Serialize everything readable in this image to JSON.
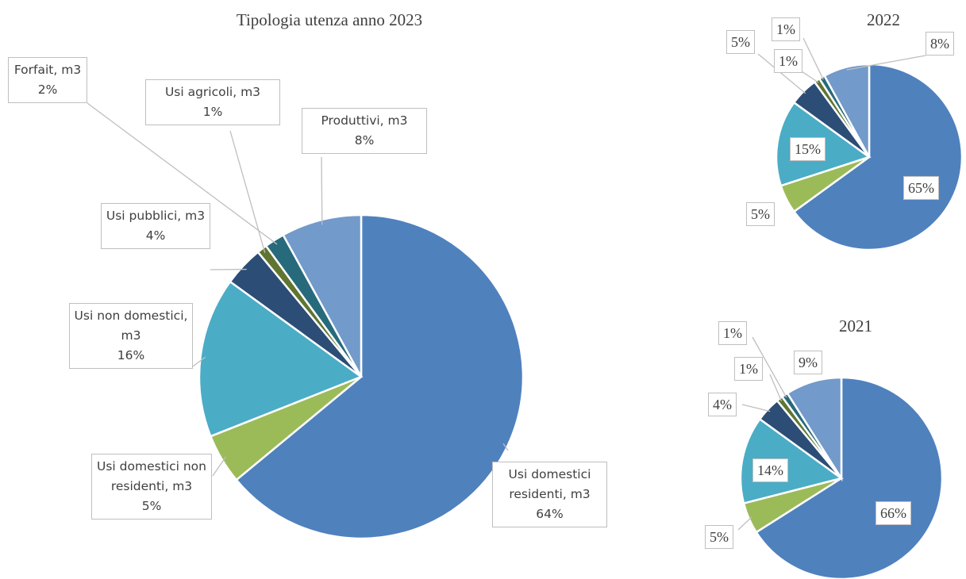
{
  "chart_data": [
    {
      "type": "pie",
      "title": "Tipologia utenza anno 2023",
      "categories": [
        "Usi domestici residenti, m3",
        "Usi domestici non residenti, m3",
        "Usi non domestici, m3",
        "Usi pubblici, m3",
        "Usi agricoli, m3",
        "Forfait, m3",
        "Produttivi, m3"
      ],
      "values": [
        64,
        5,
        16,
        4,
        1,
        2,
        8
      ],
      "value_labels": [
        "64%",
        "5%",
        "16%",
        "4%",
        "1%",
        "2%",
        "8%"
      ],
      "colors": [
        "#4f81bd",
        "#9bbb59",
        "#4bacc6",
        "#2c4d75",
        "#5f7530",
        "#276a7c",
        "#729aca"
      ]
    },
    {
      "type": "pie",
      "title": "2022",
      "values": [
        65,
        5,
        15,
        5,
        1,
        1,
        8
      ],
      "value_labels": [
        "65%",
        "5%",
        "15%",
        "5%",
        "1%",
        "1%",
        "8%"
      ],
      "colors": [
        "#4f81bd",
        "#9bbb59",
        "#4bacc6",
        "#2c4d75",
        "#5f7530",
        "#276a7c",
        "#729aca"
      ]
    },
    {
      "type": "pie",
      "title": "2021",
      "values": [
        66,
        5,
        14,
        4,
        1,
        1,
        9
      ],
      "value_labels": [
        "66%",
        "5%",
        "14%",
        "4%",
        "1%",
        "1%",
        "9%"
      ],
      "colors": [
        "#4f81bd",
        "#9bbb59",
        "#4bacc6",
        "#2c4d75",
        "#5f7530",
        "#276a7c",
        "#729aca"
      ]
    }
  ]
}
